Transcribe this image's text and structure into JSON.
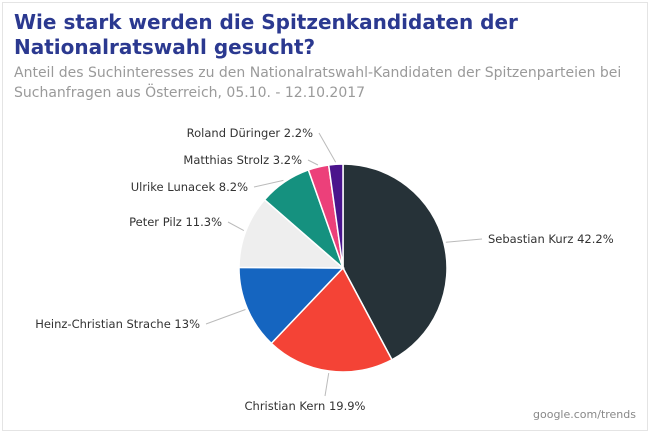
{
  "chart_data": {
    "type": "pie",
    "title": "Wie stark werden die Spitzenkandidaten der Nationalratswahl gesucht?",
    "subtitle": "Anteil des Suchinteresses zu den Nationalratswahl-Kandidaten der Spitzenparteien bei Suchanfragen aus Österreich, 05.10. - 12.10.2017",
    "slices": [
      {
        "name": "Sebastian Kurz",
        "value": 42.2,
        "label": "Sebastian Kurz 42.2%",
        "color": "#263238"
      },
      {
        "name": "Christian Kern",
        "value": 19.9,
        "label": "Christian Kern 19.9%",
        "color": "#f44336"
      },
      {
        "name": "Heinz-Christian Strache",
        "value": 13,
        "label": "Heinz-Christian Strache 13%",
        "color": "#1565c0"
      },
      {
        "name": "Peter Pilz",
        "value": 11.3,
        "label": "Peter Pilz 11.3%",
        "color": "#eeeeee"
      },
      {
        "name": "Ulrike Lunacek",
        "value": 8.2,
        "label": "Ulrike Lunacek 8.2%",
        "color": "#15917f"
      },
      {
        "name": "Matthias Strolz",
        "value": 3.2,
        "label": "Matthias Strolz 3.2%",
        "color": "#ec407a"
      },
      {
        "name": "Roland Düringer",
        "value": 2.2,
        "label": "Roland Düringer 2.2%",
        "color": "#4a148c"
      }
    ],
    "start": "top",
    "direction": "clockwise",
    "source": "google.com/trends"
  }
}
